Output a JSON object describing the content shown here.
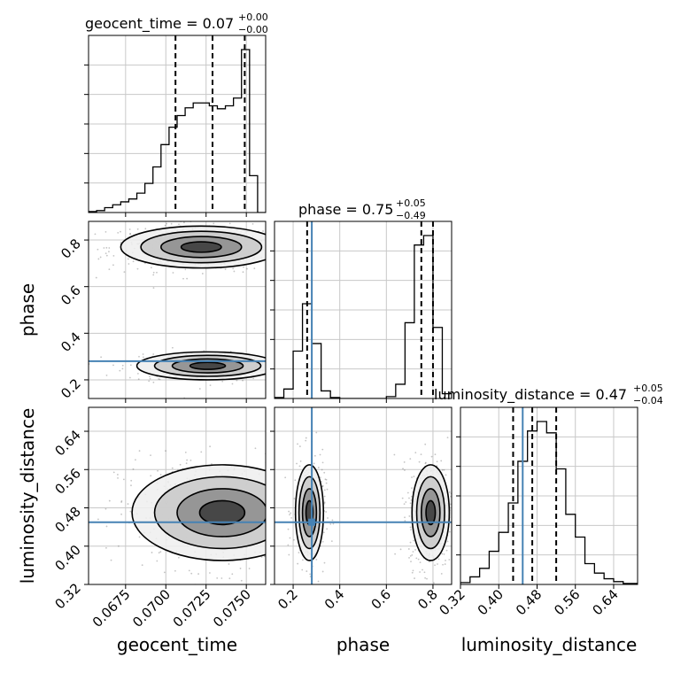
{
  "chart_data": {
    "type": "corner",
    "parameters": [
      "geocent_time",
      "phase",
      "luminosity_distance"
    ],
    "ranges": {
      "geocent_time": [
        0.0652,
        0.0762
      ],
      "phase": [
        0.12,
        0.88
      ],
      "luminosity_distance": [
        0.32,
        0.69
      ]
    },
    "ticks": {
      "geocent_time": [
        "0.0675",
        "0.0700",
        "0.0725",
        "0.0750"
      ],
      "phase": [
        "0.2",
        "0.4",
        "0.6",
        "0.8"
      ],
      "luminosity_distance": [
        "0.32",
        "0.40",
        "0.48",
        "0.56",
        "0.64"
      ]
    },
    "tick_values": {
      "geocent_time": [
        0.0675,
        0.07,
        0.0725,
        0.075
      ],
      "phase": [
        0.2,
        0.4,
        0.6,
        0.8
      ],
      "luminosity_distance": [
        0.32,
        0.4,
        0.48,
        0.56,
        0.64
      ]
    },
    "titles": {
      "geocent_time": {
        "label": "geocent_time = 0.07",
        "plus": "+0.00",
        "minus": "−0.00"
      },
      "phase": {
        "label": "phase = 0.75",
        "plus": "+0.05",
        "minus": "−0.49"
      },
      "luminosity_distance": {
        "label": "luminosity_distance = 0.47",
        "plus": "+0.05",
        "minus": "−0.04"
      }
    },
    "quantiles": {
      "geocent_time": [
        0.0706,
        0.0729,
        0.0749
      ],
      "phase": [
        0.26,
        0.75,
        0.8
      ],
      "luminosity_distance": [
        0.43,
        0.47,
        0.52
      ]
    },
    "truths": {
      "phase": 0.28,
      "luminosity_distance": 0.45
    },
    "histograms": {
      "geocent_time": {
        "edges": [
          0.0652,
          0.0657,
          0.0662,
          0.0667,
          0.0672,
          0.0677,
          0.0682,
          0.0687,
          0.0692,
          0.0697,
          0.0702,
          0.0707,
          0.0712,
          0.0717,
          0.0722,
          0.0727,
          0.0732,
          0.0737,
          0.0742,
          0.0747,
          0.0752,
          0.0757,
          0.0762
        ],
        "counts": [
          1,
          2,
          5,
          8,
          11,
          14,
          20,
          30,
          47,
          70,
          88,
          100,
          108,
          113,
          113,
          110,
          107,
          110,
          118,
          168,
          38,
          0
        ]
      },
      "phase": {
        "edges": [
          0.12,
          0.16,
          0.2,
          0.24,
          0.28,
          0.32,
          0.36,
          0.4,
          0.44,
          0.48,
          0.52,
          0.56,
          0.6,
          0.64,
          0.68,
          0.72,
          0.76,
          0.8,
          0.84,
          0.88
        ],
        "counts": [
          1,
          10,
          50,
          100,
          58,
          8,
          1,
          0,
          0,
          0,
          0,
          0,
          2,
          15,
          80,
          162,
          172,
          75,
          5
        ]
      },
      "luminosity_distance": {
        "edges": [
          0.32,
          0.34,
          0.36,
          0.38,
          0.4,
          0.42,
          0.44,
          0.46,
          0.48,
          0.5,
          0.52,
          0.54,
          0.56,
          0.58,
          0.6,
          0.62,
          0.64,
          0.66,
          0.68,
          0.69
        ],
        "counts": [
          2,
          8,
          17,
          35,
          55,
          86,
          130,
          162,
          172,
          160,
          122,
          74,
          50,
          22,
          12,
          6,
          3,
          1,
          1
        ]
      }
    },
    "pairs": [
      {
        "x": "geocent_time",
        "y": "phase",
        "modes": [
          {
            "center": [
              0.0722,
              0.77
            ],
            "spread": [
              0.0025,
              0.045
            ],
            "density": 1.0
          },
          {
            "center": [
              0.0726,
              0.26
            ],
            "spread": [
              0.0022,
              0.03
            ],
            "density": 0.5
          }
        ]
      },
      {
        "x": "geocent_time",
        "y": "luminosity_distance",
        "modes": [
          {
            "center": [
              0.0735,
              0.47
            ],
            "spread": [
              0.0028,
              0.05
            ],
            "density": 1.0
          }
        ]
      },
      {
        "x": "phase",
        "y": "luminosity_distance",
        "modes": [
          {
            "center": [
              0.27,
              0.47
            ],
            "spread": [
              0.03,
              0.05
            ],
            "density": 0.6
          },
          {
            "center": [
              0.79,
              0.47
            ],
            "spread": [
              0.04,
              0.05
            ],
            "density": 1.0
          }
        ]
      }
    ],
    "colors": {
      "hist": "#000000",
      "truth": "#4682b4",
      "grid": "#c8c8c8",
      "points": "#555555"
    }
  }
}
